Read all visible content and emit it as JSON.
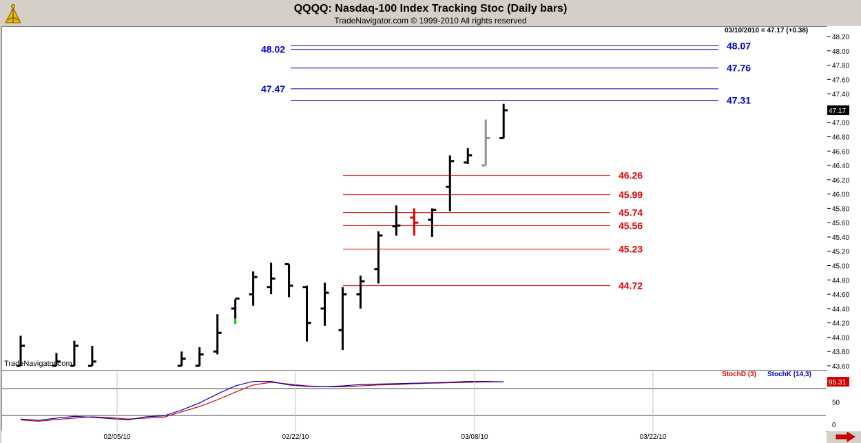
{
  "header": {
    "title": "QQQQ:  Nasdaq-100 Index Tracking Stoc  (Daily bars)",
    "subtitle": "TradeNavigator.com © 1999-2010 All rights reserved",
    "last_info": "03/10/2010 = 47.17 (+0.38)",
    "watermark": "TradeNavigator.com",
    "logo_icon": "sextant-icon",
    "next_icon": "arrow-right-icon"
  },
  "chart_data": [
    {
      "type": "ohlc",
      "ylim": [
        43.6,
        48.2
      ],
      "yticks": [
        "43.60",
        "43.80",
        "44.00",
        "44.20",
        "44.40",
        "44.60",
        "44.80",
        "45.00",
        "45.20",
        "45.40",
        "45.60",
        "45.80",
        "46.00",
        "46.20",
        "46.40",
        "46.60",
        "46.80",
        "47.00",
        "47.20",
        "47.40",
        "47.60",
        "47.80",
        "48.00",
        "48.20"
      ],
      "last_price": "47.17",
      "xticks": [
        "02/05/10",
        "02/22/10",
        "03/08/10",
        "03/22/10"
      ],
      "bars": [
        {
          "x": 1,
          "o": 43.6,
          "h": 44.02,
          "l": 43.6,
          "c": 43.88
        },
        {
          "x": 3,
          "o": 43.6,
          "h": 43.78,
          "l": 43.6,
          "c": 43.66
        },
        {
          "x": 4,
          "o": 43.6,
          "h": 43.95,
          "l": 43.6,
          "c": 43.88
        },
        {
          "x": 5,
          "o": 43.6,
          "h": 43.88,
          "l": 43.6,
          "c": 43.66
        },
        {
          "x": 10,
          "o": 43.6,
          "h": 43.8,
          "l": 43.6,
          "c": 43.7
        },
        {
          "x": 11,
          "o": 43.6,
          "h": 43.86,
          "l": 43.6,
          "c": 43.76
        },
        {
          "x": 12,
          "o": 43.8,
          "h": 44.32,
          "l": 43.76,
          "c": 44.06
        },
        {
          "x": 13,
          "o": 44.4,
          "h": 44.53,
          "l": 44.26,
          "c": 44.54
        },
        {
          "x": 14,
          "o": 44.6,
          "h": 44.92,
          "l": 44.44,
          "c": 44.84
        },
        {
          "x": 15,
          "o": 44.7,
          "h": 45.04,
          "l": 44.6,
          "c": 44.82
        },
        {
          "x": 16,
          "o": 45.02,
          "h": 45.02,
          "l": 44.56,
          "c": 44.72
        },
        {
          "x": 17,
          "o": 44.7,
          "h": 44.72,
          "l": 43.94,
          "c": 44.2
        },
        {
          "x": 18,
          "o": 44.4,
          "h": 44.76,
          "l": 44.16,
          "c": 44.62
        },
        {
          "x": 19,
          "o": 44.1,
          "h": 44.7,
          "l": 43.82,
          "c": 44.6
        },
        {
          "x": 20,
          "o": 44.6,
          "h": 44.86,
          "l": 44.4,
          "c": 44.78
        },
        {
          "x": 21,
          "o": 44.95,
          "h": 45.48,
          "l": 44.75,
          "c": 45.42
        },
        {
          "x": 22,
          "o": 45.55,
          "h": 45.84,
          "l": 45.42,
          "c": 45.56
        },
        {
          "x": 23,
          "o": 45.67,
          "h": 45.8,
          "l": 45.42,
          "c": 45.6
        },
        {
          "x": 24,
          "o": 45.64,
          "h": 45.8,
          "l": 45.4,
          "c": 45.78
        },
        {
          "x": 25,
          "o": 46.1,
          "h": 46.54,
          "l": 45.76,
          "c": 46.46
        },
        {
          "x": 26,
          "o": 46.44,
          "h": 46.64,
          "l": 46.42,
          "c": 46.54
        },
        {
          "x": 27,
          "o": 46.4,
          "h": 47.04,
          "l": 46.4,
          "c": 46.78
        },
        {
          "x": 28,
          "o": 46.78,
          "h": 47.26,
          "l": 46.78,
          "c": 47.17
        }
      ],
      "levels": [
        {
          "value": 48.07,
          "label": "48.07",
          "color": "#0000cc"
        },
        {
          "value": 48.02,
          "label": "48.02",
          "color": "#0000cc"
        },
        {
          "value": 47.76,
          "label": "47.76",
          "color": "#0000cc"
        },
        {
          "value": 47.47,
          "label": "47.47",
          "color": "#0000cc"
        },
        {
          "value": 47.31,
          "label": "47.31",
          "color": "#0000cc"
        },
        {
          "value": 46.26,
          "label": "46.26",
          "color": "#dd0000"
        },
        {
          "value": 45.99,
          "label": "45.99",
          "color": "#dd0000"
        },
        {
          "value": 45.74,
          "label": "45.74",
          "color": "#dd0000"
        },
        {
          "value": 45.56,
          "label": "45.56",
          "color": "#dd0000"
        },
        {
          "value": 45.23,
          "label": "45.23",
          "color": "#dd0000"
        },
        {
          "value": 44.72,
          "label": "44.72",
          "color": "#dd0000"
        }
      ]
    },
    {
      "type": "line",
      "ylim": [
        0,
        100
      ],
      "yticks": [
        "0",
        "50"
      ],
      "last_value": "95.31",
      "reference_lines": [
        20,
        80
      ],
      "series": [
        {
          "name": "StochD (3)",
          "color": "#d00000",
          "x": [
            1,
            2,
            3,
            4,
            5,
            6,
            7,
            8,
            9,
            10,
            11,
            12,
            13,
            14,
            15,
            16,
            17,
            18,
            19,
            20,
            21,
            22,
            23,
            24,
            25,
            26,
            27,
            28
          ],
          "values": [
            10,
            7,
            11,
            14,
            17,
            15,
            12,
            14,
            16,
            28,
            40,
            55,
            72,
            88,
            94,
            90,
            86,
            84,
            84,
            86,
            88,
            89,
            91,
            92,
            93,
            94,
            95,
            95
          ]
        },
        {
          "name": "StochK (14,3)",
          "color": "#0000c0",
          "x": [
            1,
            2,
            3,
            4,
            5,
            6,
            7,
            8,
            9,
            10,
            11,
            12,
            13,
            14,
            15,
            16,
            17,
            18,
            19,
            20,
            21,
            22,
            23,
            24,
            25,
            26,
            27,
            28
          ],
          "values": [
            12,
            9,
            14,
            18,
            16,
            13,
            10,
            17,
            19,
            32,
            48,
            68,
            86,
            96,
            96,
            88,
            85,
            84,
            86,
            89,
            90,
            91,
            92,
            93,
            94,
            96,
            96,
            95
          ]
        }
      ]
    }
  ]
}
